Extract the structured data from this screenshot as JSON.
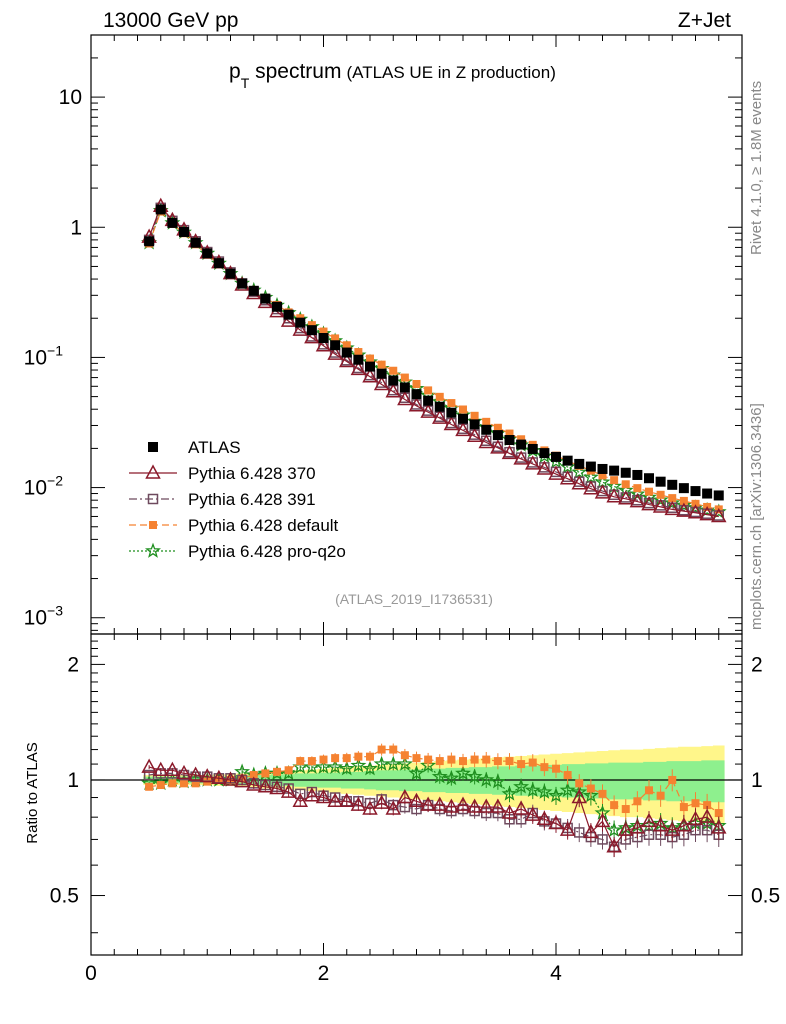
{
  "header": {
    "energy": "13000 GeV pp",
    "process": "Z+Jet"
  },
  "title": {
    "main": "p",
    "sub": "T",
    "rest": " spectrum",
    "note": "(ATLAS UE in Z production)"
  },
  "side_labels": {
    "rivet": "Rivet 4.1.0, ≥ 1.8M events",
    "url": "mcplots.cern.ch [arXiv:1306.3436]"
  },
  "analysis_id": "(ATLAS_2019_I1736531)",
  "colors": {
    "atlas": "#000000",
    "p370": "#8b1a2b",
    "p391": "#6e4a5e",
    "pdefault": "#f58231",
    "pq2o": "#1f8f1f",
    "band_inner": "#8ef08e",
    "band_outer": "#fff68a"
  },
  "chart_data": [
    {
      "type": "line",
      "name": "main",
      "title": "pT spectrum (ATLAS UE in Z production)",
      "xlabel": "",
      "ylabel": "",
      "xlim": [
        0,
        5.6
      ],
      "ylim": [
        0.00075,
        30
      ],
      "yscale": "log",
      "yticks": [
        {
          "v": 10,
          "base": "10",
          "exp": ""
        },
        {
          "v": 1,
          "base": "1",
          "exp": ""
        },
        {
          "v": 0.1,
          "base": "10",
          "exp": "−1"
        },
        {
          "v": 0.01,
          "base": "10",
          "exp": "−2"
        },
        {
          "v": 0.001,
          "base": "10",
          "exp": "−3"
        }
      ],
      "legend": [
        {
          "key": "atlas",
          "label": "ATLAS"
        },
        {
          "key": "p370",
          "label": "Pythia 6.428 370"
        },
        {
          "key": "p391",
          "label": "Pythia 6.428 391"
        },
        {
          "key": "pdefault",
          "label": "Pythia 6.428 default"
        },
        {
          "key": "pq2o",
          "label": "Pythia 6.428 pro-q2o"
        }
      ],
      "x": [
        0.5,
        0.6,
        0.7,
        0.8,
        0.9,
        1.0,
        1.1,
        1.2,
        1.3,
        1.4,
        1.5,
        1.6,
        1.7,
        1.8,
        1.9,
        2.0,
        2.1,
        2.2,
        2.3,
        2.4,
        2.5,
        2.6,
        2.7,
        2.8,
        2.9,
        3.0,
        3.1,
        3.2,
        3.3,
        3.4,
        3.5,
        3.6,
        3.7,
        3.8,
        3.9,
        4.0,
        4.1,
        4.2,
        4.3,
        4.4,
        4.5,
        4.6,
        4.7,
        4.8,
        4.9,
        5.0,
        5.1,
        5.2,
        5.3,
        5.4
      ],
      "atlas": [
        0.78,
        1.37,
        1.08,
        0.92,
        0.76,
        0.63,
        0.53,
        0.44,
        0.37,
        0.325,
        0.283,
        0.245,
        0.213,
        0.185,
        0.162,
        0.141,
        0.124,
        0.109,
        0.096,
        0.085,
        0.075,
        0.0665,
        0.0588,
        0.0522,
        0.0465,
        0.0418,
        0.0376,
        0.0338,
        0.0306,
        0.0278,
        0.0253,
        0.0232,
        0.0214,
        0.0198,
        0.0184,
        0.0172,
        0.0161,
        0.0152,
        0.0145,
        0.0139,
        0.0135,
        0.013,
        0.0125,
        0.0118,
        0.0111,
        0.0105,
        0.0099,
        0.0094,
        0.009,
        0.0087
      ],
      "series": {
        "p370": [
          0.84,
          1.45,
          1.13,
          0.955,
          0.775,
          0.635,
          0.535,
          0.44,
          0.36,
          0.31,
          0.265,
          0.225,
          0.19,
          0.162,
          0.142,
          0.123,
          0.106,
          0.093,
          0.081,
          0.071,
          0.062,
          0.0545,
          0.0475,
          0.0425,
          0.038,
          0.0342,
          0.0305,
          0.0275,
          0.0248,
          0.0222,
          0.0202,
          0.0183,
          0.0166,
          0.0152,
          0.0139,
          0.0127,
          0.0117,
          0.0107,
          0.0098,
          0.0091,
          0.0085,
          0.0082,
          0.0078,
          0.0074,
          0.0071,
          0.0068,
          0.0066,
          0.0064,
          0.0062,
          0.006
        ],
        "p391": [
          0.8,
          1.41,
          1.12,
          0.95,
          0.78,
          0.645,
          0.545,
          0.45,
          0.37,
          0.32,
          0.275,
          0.235,
          0.2,
          0.168,
          0.145,
          0.126,
          0.109,
          0.095,
          0.083,
          0.073,
          0.064,
          0.056,
          0.049,
          0.0435,
          0.039,
          0.035,
          0.0313,
          0.0283,
          0.0255,
          0.0229,
          0.0206,
          0.0187,
          0.017,
          0.0156,
          0.0143,
          0.0132,
          0.0121,
          0.0111,
          0.0102,
          0.0094,
          0.0088,
          0.0084,
          0.008,
          0.0076,
          0.0073,
          0.007,
          0.0067,
          0.0065,
          0.0063,
          0.0061
        ],
        "pdefault": [
          0.75,
          1.32,
          1.06,
          0.9,
          0.74,
          0.615,
          0.52,
          0.435,
          0.365,
          0.325,
          0.287,
          0.253,
          0.222,
          0.2,
          0.177,
          0.158,
          0.14,
          0.124,
          0.11,
          0.098,
          0.088,
          0.079,
          0.07,
          0.0625,
          0.0558,
          0.0498,
          0.0446,
          0.0398,
          0.0356,
          0.032,
          0.0288,
          0.026,
          0.0235,
          0.0213,
          0.0193,
          0.0176,
          0.016,
          0.0147,
          0.0135,
          0.0124,
          0.0114,
          0.0106,
          0.0099,
          0.0093,
          0.0088,
          0.0083,
          0.0079,
          0.0075,
          0.0071,
          0.0068
        ],
        "pq2o": [
          0.76,
          1.34,
          1.08,
          0.915,
          0.76,
          0.63,
          0.528,
          0.44,
          0.37,
          0.328,
          0.288,
          0.251,
          0.22,
          0.196,
          0.172,
          0.152,
          0.134,
          0.118,
          0.104,
          0.092,
          0.082,
          0.073,
          0.0645,
          0.0575,
          0.051,
          0.0455,
          0.0405,
          0.036,
          0.0322,
          0.0289,
          0.026,
          0.0235,
          0.0212,
          0.0192,
          0.0174,
          0.0158,
          0.0144,
          0.0131,
          0.012,
          0.011,
          0.0102,
          0.0095,
          0.0089,
          0.0084,
          0.008,
          0.0076,
          0.0073,
          0.007,
          0.0067,
          0.0065
        ]
      }
    },
    {
      "type": "line",
      "name": "ratio",
      "xlabel": "",
      "ylabel": "Ratio to ATLAS",
      "xlim": [
        0,
        5.6
      ],
      "ylim": [
        0.35,
        2.4
      ],
      "yscale": "log",
      "yticks": [
        {
          "v": 2,
          "label": "2"
        },
        {
          "v": 1,
          "label": "1"
        },
        {
          "v": 0.5,
          "label": "0.5"
        }
      ],
      "xticks": [
        {
          "v": 0,
          "label": "0"
        },
        {
          "v": 2,
          "label": "2"
        },
        {
          "v": 4,
          "label": "4"
        }
      ],
      "x": [
        0.5,
        0.6,
        0.7,
        0.8,
        0.9,
        1.0,
        1.1,
        1.2,
        1.3,
        1.4,
        1.5,
        1.6,
        1.7,
        1.8,
        1.9,
        2.0,
        2.1,
        2.2,
        2.3,
        2.4,
        2.5,
        2.6,
        2.7,
        2.8,
        2.9,
        3.0,
        3.1,
        3.2,
        3.3,
        3.4,
        3.5,
        3.6,
        3.7,
        3.8,
        3.9,
        4.0,
        4.1,
        4.2,
        4.3,
        4.4,
        4.5,
        4.6,
        4.7,
        4.8,
        4.9,
        5.0,
        5.1,
        5.2,
        5.3,
        5.4
      ],
      "band_inner": [
        0.02,
        0.02,
        0.02,
        0.02,
        0.02,
        0.02,
        0.02,
        0.02,
        0.025,
        0.03,
        0.03,
        0.035,
        0.035,
        0.04,
        0.04,
        0.045,
        0.045,
        0.05,
        0.05,
        0.055,
        0.06,
        0.06,
        0.065,
        0.065,
        0.07,
        0.07,
        0.075,
        0.075,
        0.08,
        0.08,
        0.085,
        0.085,
        0.09,
        0.09,
        0.095,
        0.095,
        0.1,
        0.1,
        0.105,
        0.105,
        0.11,
        0.11,
        0.11,
        0.115,
        0.115,
        0.12,
        0.12,
        0.12,
        0.125,
        0.125
      ],
      "band_outer": [
        0.03,
        0.03,
        0.03,
        0.03,
        0.03,
        0.03,
        0.035,
        0.035,
        0.04,
        0.045,
        0.05,
        0.05,
        0.055,
        0.06,
        0.065,
        0.07,
        0.075,
        0.08,
        0.085,
        0.09,
        0.095,
        0.1,
        0.105,
        0.11,
        0.115,
        0.12,
        0.125,
        0.13,
        0.135,
        0.14,
        0.145,
        0.15,
        0.155,
        0.16,
        0.165,
        0.17,
        0.175,
        0.18,
        0.185,
        0.19,
        0.195,
        0.2,
        0.2,
        0.205,
        0.21,
        0.215,
        0.22,
        0.22,
        0.225,
        0.23
      ],
      "series": {
        "p370": [
          1.08,
          1.06,
          1.06,
          1.04,
          1.03,
          1.02,
          1.01,
          1.0,
          0.99,
          0.97,
          0.96,
          0.95,
          0.93,
          0.88,
          0.91,
          0.9,
          0.88,
          0.88,
          0.86,
          0.84,
          0.87,
          0.84,
          0.9,
          0.88,
          0.86,
          0.86,
          0.85,
          0.86,
          0.85,
          0.85,
          0.85,
          0.82,
          0.84,
          0.81,
          0.79,
          0.77,
          0.74,
          0.9,
          0.73,
          0.78,
          0.67,
          0.74,
          0.75,
          0.78,
          0.76,
          0.74,
          0.76,
          0.79,
          0.8,
          0.75
        ],
        "p391": [
          1.03,
          1.04,
          1.04,
          1.03,
          1.02,
          1.02,
          1.01,
          1.01,
          1.0,
          0.98,
          0.97,
          0.96,
          0.95,
          0.92,
          0.93,
          0.91,
          0.9,
          0.88,
          0.88,
          0.87,
          0.89,
          0.86,
          0.85,
          0.84,
          0.86,
          0.84,
          0.83,
          0.84,
          0.83,
          0.82,
          0.82,
          0.79,
          0.79,
          0.82,
          0.78,
          0.77,
          0.75,
          0.73,
          0.71,
          0.7,
          0.67,
          0.7,
          0.71,
          0.72,
          0.72,
          0.71,
          0.72,
          0.74,
          0.74,
          0.72
        ],
        "pdefault": [
          0.96,
          0.97,
          0.98,
          0.98,
          0.98,
          0.99,
          1.0,
          1.0,
          1.01,
          1.03,
          1.04,
          1.05,
          1.06,
          1.12,
          1.12,
          1.13,
          1.14,
          1.14,
          1.15,
          1.15,
          1.2,
          1.2,
          1.16,
          1.14,
          1.13,
          1.12,
          1.13,
          1.12,
          1.13,
          1.13,
          1.12,
          1.12,
          1.1,
          1.11,
          1.08,
          1.07,
          1.03,
          0.98,
          0.95,
          0.92,
          0.86,
          0.84,
          0.88,
          0.94,
          0.91,
          1.0,
          0.85,
          0.87,
          0.86,
          0.82
        ],
        "pq2o": [
          0.98,
          0.98,
          1.0,
          0.99,
          1.0,
          1.0,
          1.0,
          1.0,
          1.05,
          1.03,
          1.04,
          1.04,
          1.04,
          1.08,
          1.08,
          1.08,
          1.08,
          1.07,
          1.09,
          1.07,
          1.1,
          1.1,
          1.1,
          1.04,
          1.09,
          1.02,
          1.01,
          1.04,
          1.02,
          1.0,
          0.99,
          0.92,
          0.96,
          0.94,
          0.93,
          0.91,
          0.94,
          0.93,
          0.91,
          0.82,
          0.74,
          0.75,
          0.76,
          0.76,
          0.77,
          0.75,
          0.76,
          0.77,
          0.77,
          0.76
        ]
      }
    }
  ]
}
